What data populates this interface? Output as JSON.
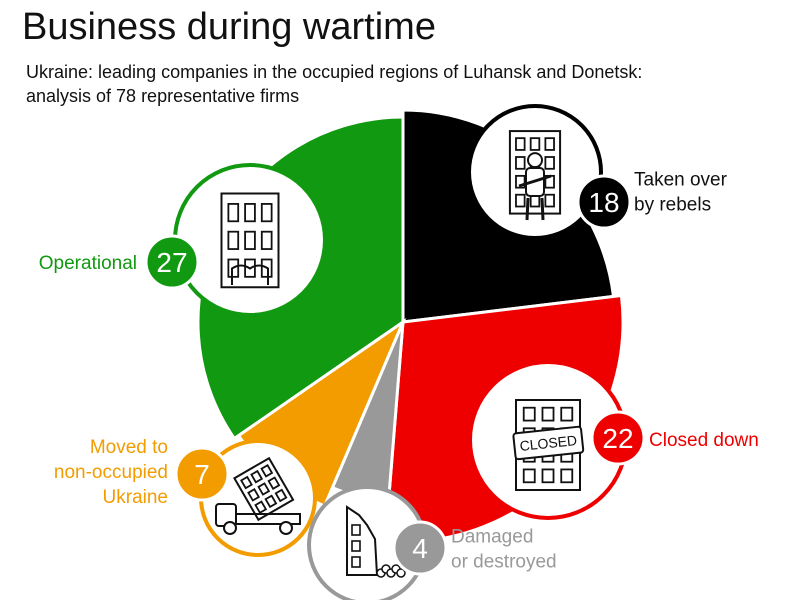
{
  "title": "Business during wartime",
  "subtitle_lines": [
    "Ukraine: leading companies in the occupied regions of Luhansk and Donetsk:",
    "analysis of 78 representative firms"
  ],
  "colors": {
    "taken_over": "#000000",
    "closed_down": "#ee0000",
    "damaged": "#999999",
    "moved": "#f39c00",
    "operational": "#119911"
  },
  "chart_data": {
    "type": "pie",
    "total": 78,
    "series": [
      {
        "name": "Taken over by rebels",
        "value": 18,
        "label_lines": [
          "Taken over",
          "by rebels"
        ],
        "color": "#000000",
        "icon": "soldier-building-icon"
      },
      {
        "name": "Closed down",
        "value": 22,
        "label_lines": [
          "Closed down"
        ],
        "color": "#ee0000",
        "icon": "closed-sign-building-icon",
        "icon_text": "CLOSED"
      },
      {
        "name": "Damaged or destroyed",
        "value": 4,
        "label_lines": [
          "Damaged",
          "or destroyed"
        ],
        "color": "#999999",
        "icon": "ruined-building-icon"
      },
      {
        "name": "Moved to non-occupied Ukraine",
        "value": 7,
        "label_lines": [
          "Moved to",
          "non-occupied",
          "Ukraine"
        ],
        "color": "#f39c00",
        "icon": "truck-building-icon"
      },
      {
        "name": "Operational",
        "value": 27,
        "label_lines": [
          "Operational"
        ],
        "color": "#119911",
        "icon": "office-building-icon"
      }
    ]
  }
}
